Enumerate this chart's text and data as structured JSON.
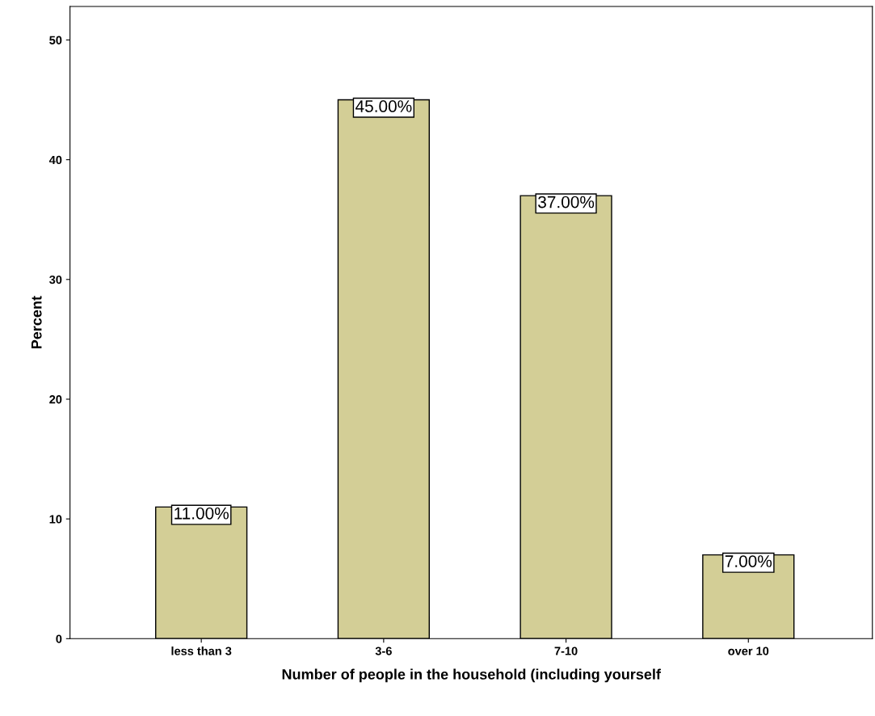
{
  "chart_data": {
    "type": "bar",
    "xlabel": "Number of people in the household (including yourself",
    "ylabel": "Percent",
    "categories": [
      "less than 3",
      "3-6",
      "7-10",
      "over 10"
    ],
    "values": [
      11,
      45,
      37,
      7
    ],
    "value_labels": [
      "11.00%",
      "45.00%",
      "37.00%",
      "7.00%"
    ],
    "color": "#d3ce96",
    "ylim": [
      0,
      52.8
    ],
    "yticks": [
      0,
      10,
      20,
      30,
      40,
      50
    ],
    "grid": false
  }
}
